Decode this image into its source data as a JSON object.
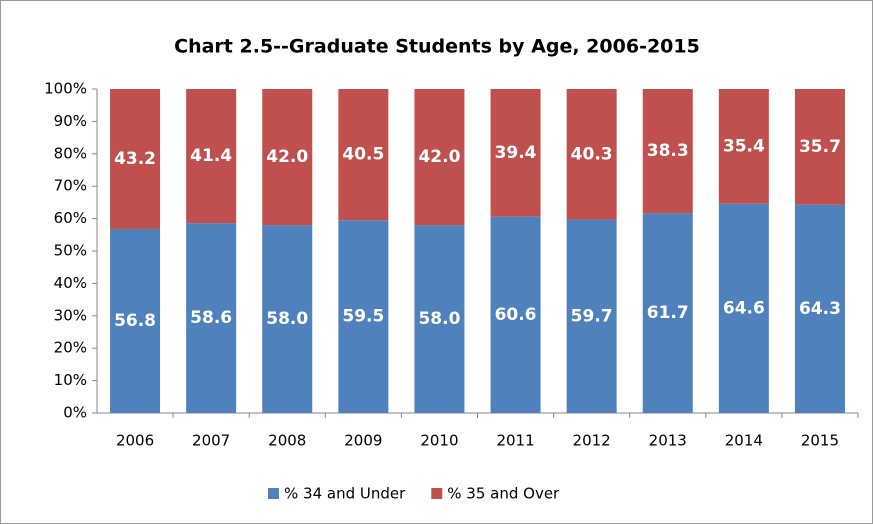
{
  "chart_data": {
    "type": "stacked_bar",
    "title": "Chart 2.5--Graduate Students by Age, 2006-2015",
    "categories": [
      "2006",
      "2007",
      "2008",
      "2009",
      "2010",
      "2011",
      "2012",
      "2013",
      "2014",
      "2015"
    ],
    "series": [
      {
        "name": "% 34 and Under",
        "color": "#4f81bd",
        "values": [
          56.8,
          58.6,
          58.0,
          59.5,
          58.0,
          60.6,
          59.7,
          61.7,
          64.6,
          64.3
        ],
        "value_labels": [
          "56.8",
          "58.6",
          "58.0",
          "59.5",
          "58.0",
          "60.6",
          "59.7",
          "61.7",
          "64.6",
          "64.3"
        ]
      },
      {
        "name": "% 35 and Over",
        "color": "#c0504d",
        "values": [
          43.2,
          41.4,
          42.0,
          40.5,
          42.0,
          39.4,
          40.3,
          38.3,
          35.4,
          35.7
        ],
        "value_labels": [
          "43.2",
          "41.4",
          "42.0",
          "40.5",
          "42.0",
          "39.4",
          "40.3",
          "38.3",
          "35.4",
          "35.7"
        ]
      }
    ],
    "ylim": [
      0,
      100
    ],
    "yticks": [
      {
        "value": 0,
        "label": "0%"
      },
      {
        "value": 10,
        "label": "10%"
      },
      {
        "value": 20,
        "label": "20%"
      },
      {
        "value": 30,
        "label": "30%"
      },
      {
        "value": 40,
        "label": "40%"
      },
      {
        "value": 50,
        "label": "50%"
      },
      {
        "value": 60,
        "label": "60%"
      },
      {
        "value": 70,
        "label": "70%"
      },
      {
        "value": 80,
        "label": "80%"
      },
      {
        "value": 90,
        "label": "90%"
      },
      {
        "value": 100,
        "label": "100%"
      }
    ],
    "legend": "bottom"
  }
}
